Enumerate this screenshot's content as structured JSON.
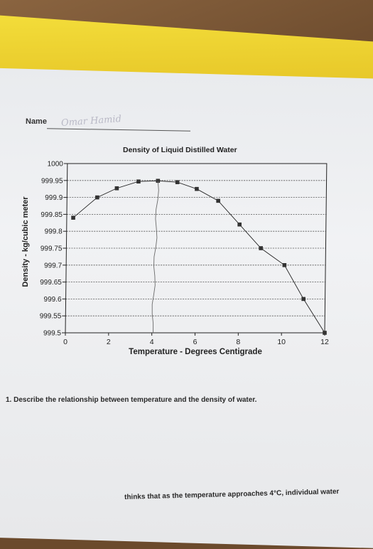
{
  "worksheet": {
    "name_label": "Name",
    "name_written": "Omar Hamid",
    "question": "1.  Describe the relationship between temperature and the density of water.",
    "partial_answer": "thinks that as the temperature approaches 4°C, individual water"
  },
  "chart_data": {
    "type": "scatter",
    "title": "Density of Liquid Distilled Water",
    "xlabel": "Temperature - Degrees Centigrade",
    "ylabel": "Density - kg/cubic meter",
    "xlim": [
      0,
      12
    ],
    "ylim": [
      999.5,
      1000
    ],
    "x_ticks": [
      "0",
      "2",
      "4",
      "6",
      "8",
      "10",
      "12"
    ],
    "y_ticks": [
      "999.5",
      "999.55",
      "999.6",
      "999.65",
      "999.7",
      "999.75",
      "999.8",
      "999.85",
      "999.9",
      "999.95",
      "1000"
    ],
    "grid": true,
    "series": [
      {
        "x": [
          0.3,
          1.4,
          2.3,
          3.3,
          4.2,
          5.1,
          6.0,
          7.0,
          8.0,
          9.0,
          10.1,
          11.0,
          12.0
        ],
        "y": [
          999.84,
          999.9,
          999.927,
          999.947,
          999.949,
          999.945,
          999.925,
          999.89,
          999.82,
          999.75,
          999.7,
          999.6,
          999.5
        ]
      }
    ],
    "hand_drawn_line_x": 4.2
  },
  "colors": {
    "paper": "#eceef0",
    "ink": "#222222",
    "grid": "#555555",
    "marker": "#333333",
    "folder": "#f0d53a",
    "wood": "#6b4a2c"
  }
}
